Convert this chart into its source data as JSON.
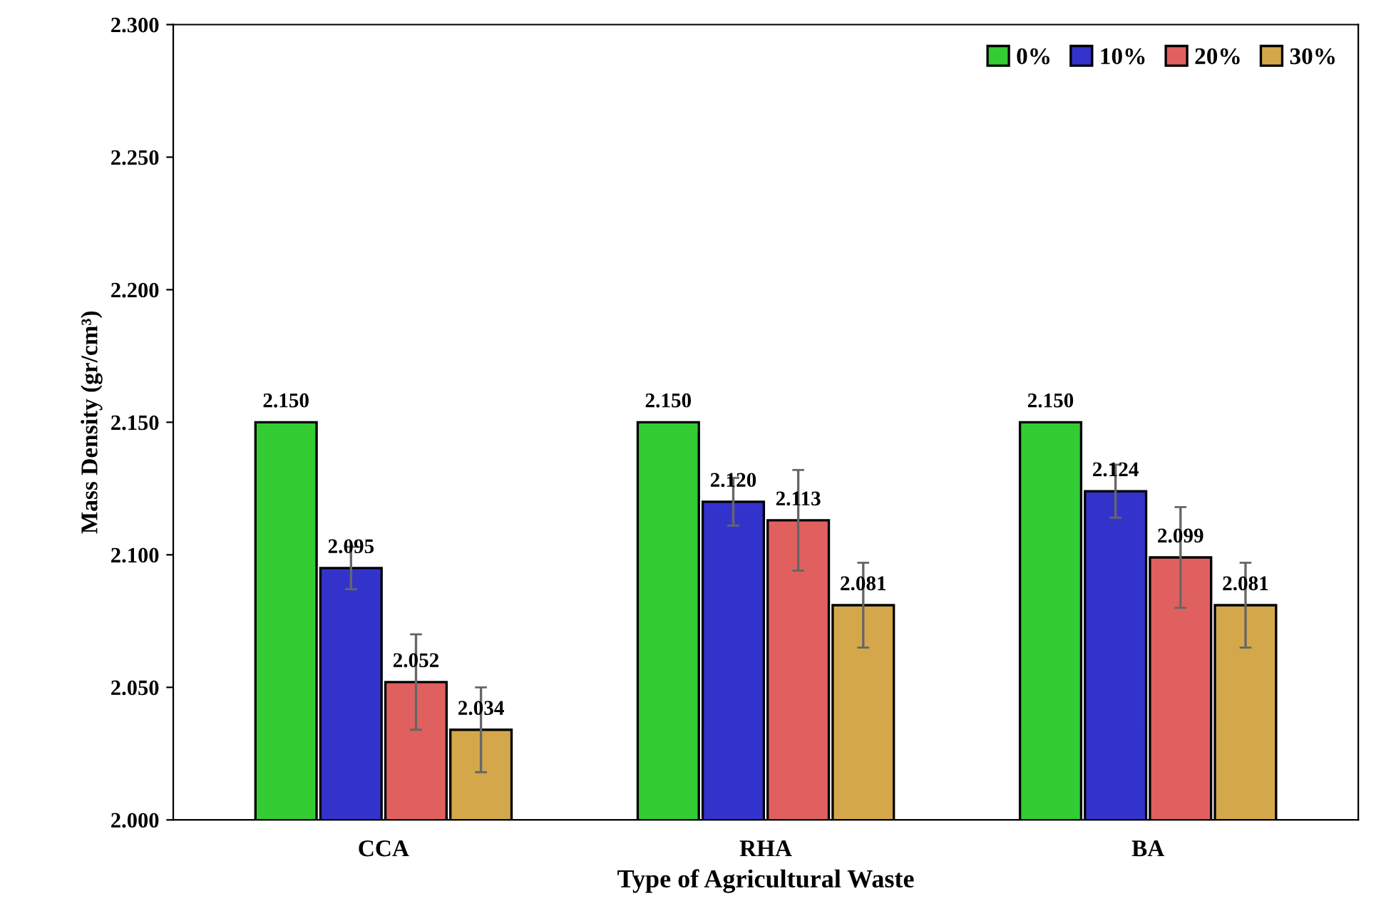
{
  "chart_data": {
    "type": "bar",
    "xlabel": "Type of Agricultural Waste",
    "ylabel": "Mass Density (gr/cm³)",
    "categories": [
      "CCA",
      "RHA",
      "BA"
    ],
    "series": [
      {
        "name": "0%",
        "color": "#33cc33",
        "values": [
          2.15,
          2.15,
          2.15
        ],
        "value_labels": [
          "2.150",
          "2.150",
          "2.150"
        ]
      },
      {
        "name": "10%",
        "color": "#3333cc",
        "values": [
          2.095,
          2.12,
          2.124
        ],
        "errors": [
          0.008,
          0.009,
          0.01
        ],
        "value_labels": [
          "2.095",
          "2.120",
          "2.124"
        ]
      },
      {
        "name": "20%",
        "color": "#e06060",
        "values": [
          2.052,
          2.113,
          2.099
        ],
        "errors": [
          0.018,
          0.019,
          0.019
        ],
        "value_labels": [
          "2.052",
          "2.113",
          "2.099"
        ]
      },
      {
        "name": "30%",
        "color": "#d4a84a",
        "values": [
          2.034,
          2.081,
          2.081
        ],
        "errors": [
          0.016,
          0.016,
          0.016
        ],
        "value_labels": [
          "2.034",
          "2.081",
          "2.081"
        ]
      }
    ],
    "ylim": [
      2.0,
      2.3
    ],
    "yticks": [
      {
        "value": 2.0,
        "label": "2.000"
      },
      {
        "value": 2.05,
        "label": "2.050"
      },
      {
        "value": 2.1,
        "label": "2.100"
      },
      {
        "value": 2.15,
        "label": "2.150"
      },
      {
        "value": 2.2,
        "label": "2.200"
      },
      {
        "value": 2.25,
        "label": "2.250"
      },
      {
        "value": 2.3,
        "label": "2.300"
      }
    ],
    "legend": "top right",
    "grid": false
  }
}
